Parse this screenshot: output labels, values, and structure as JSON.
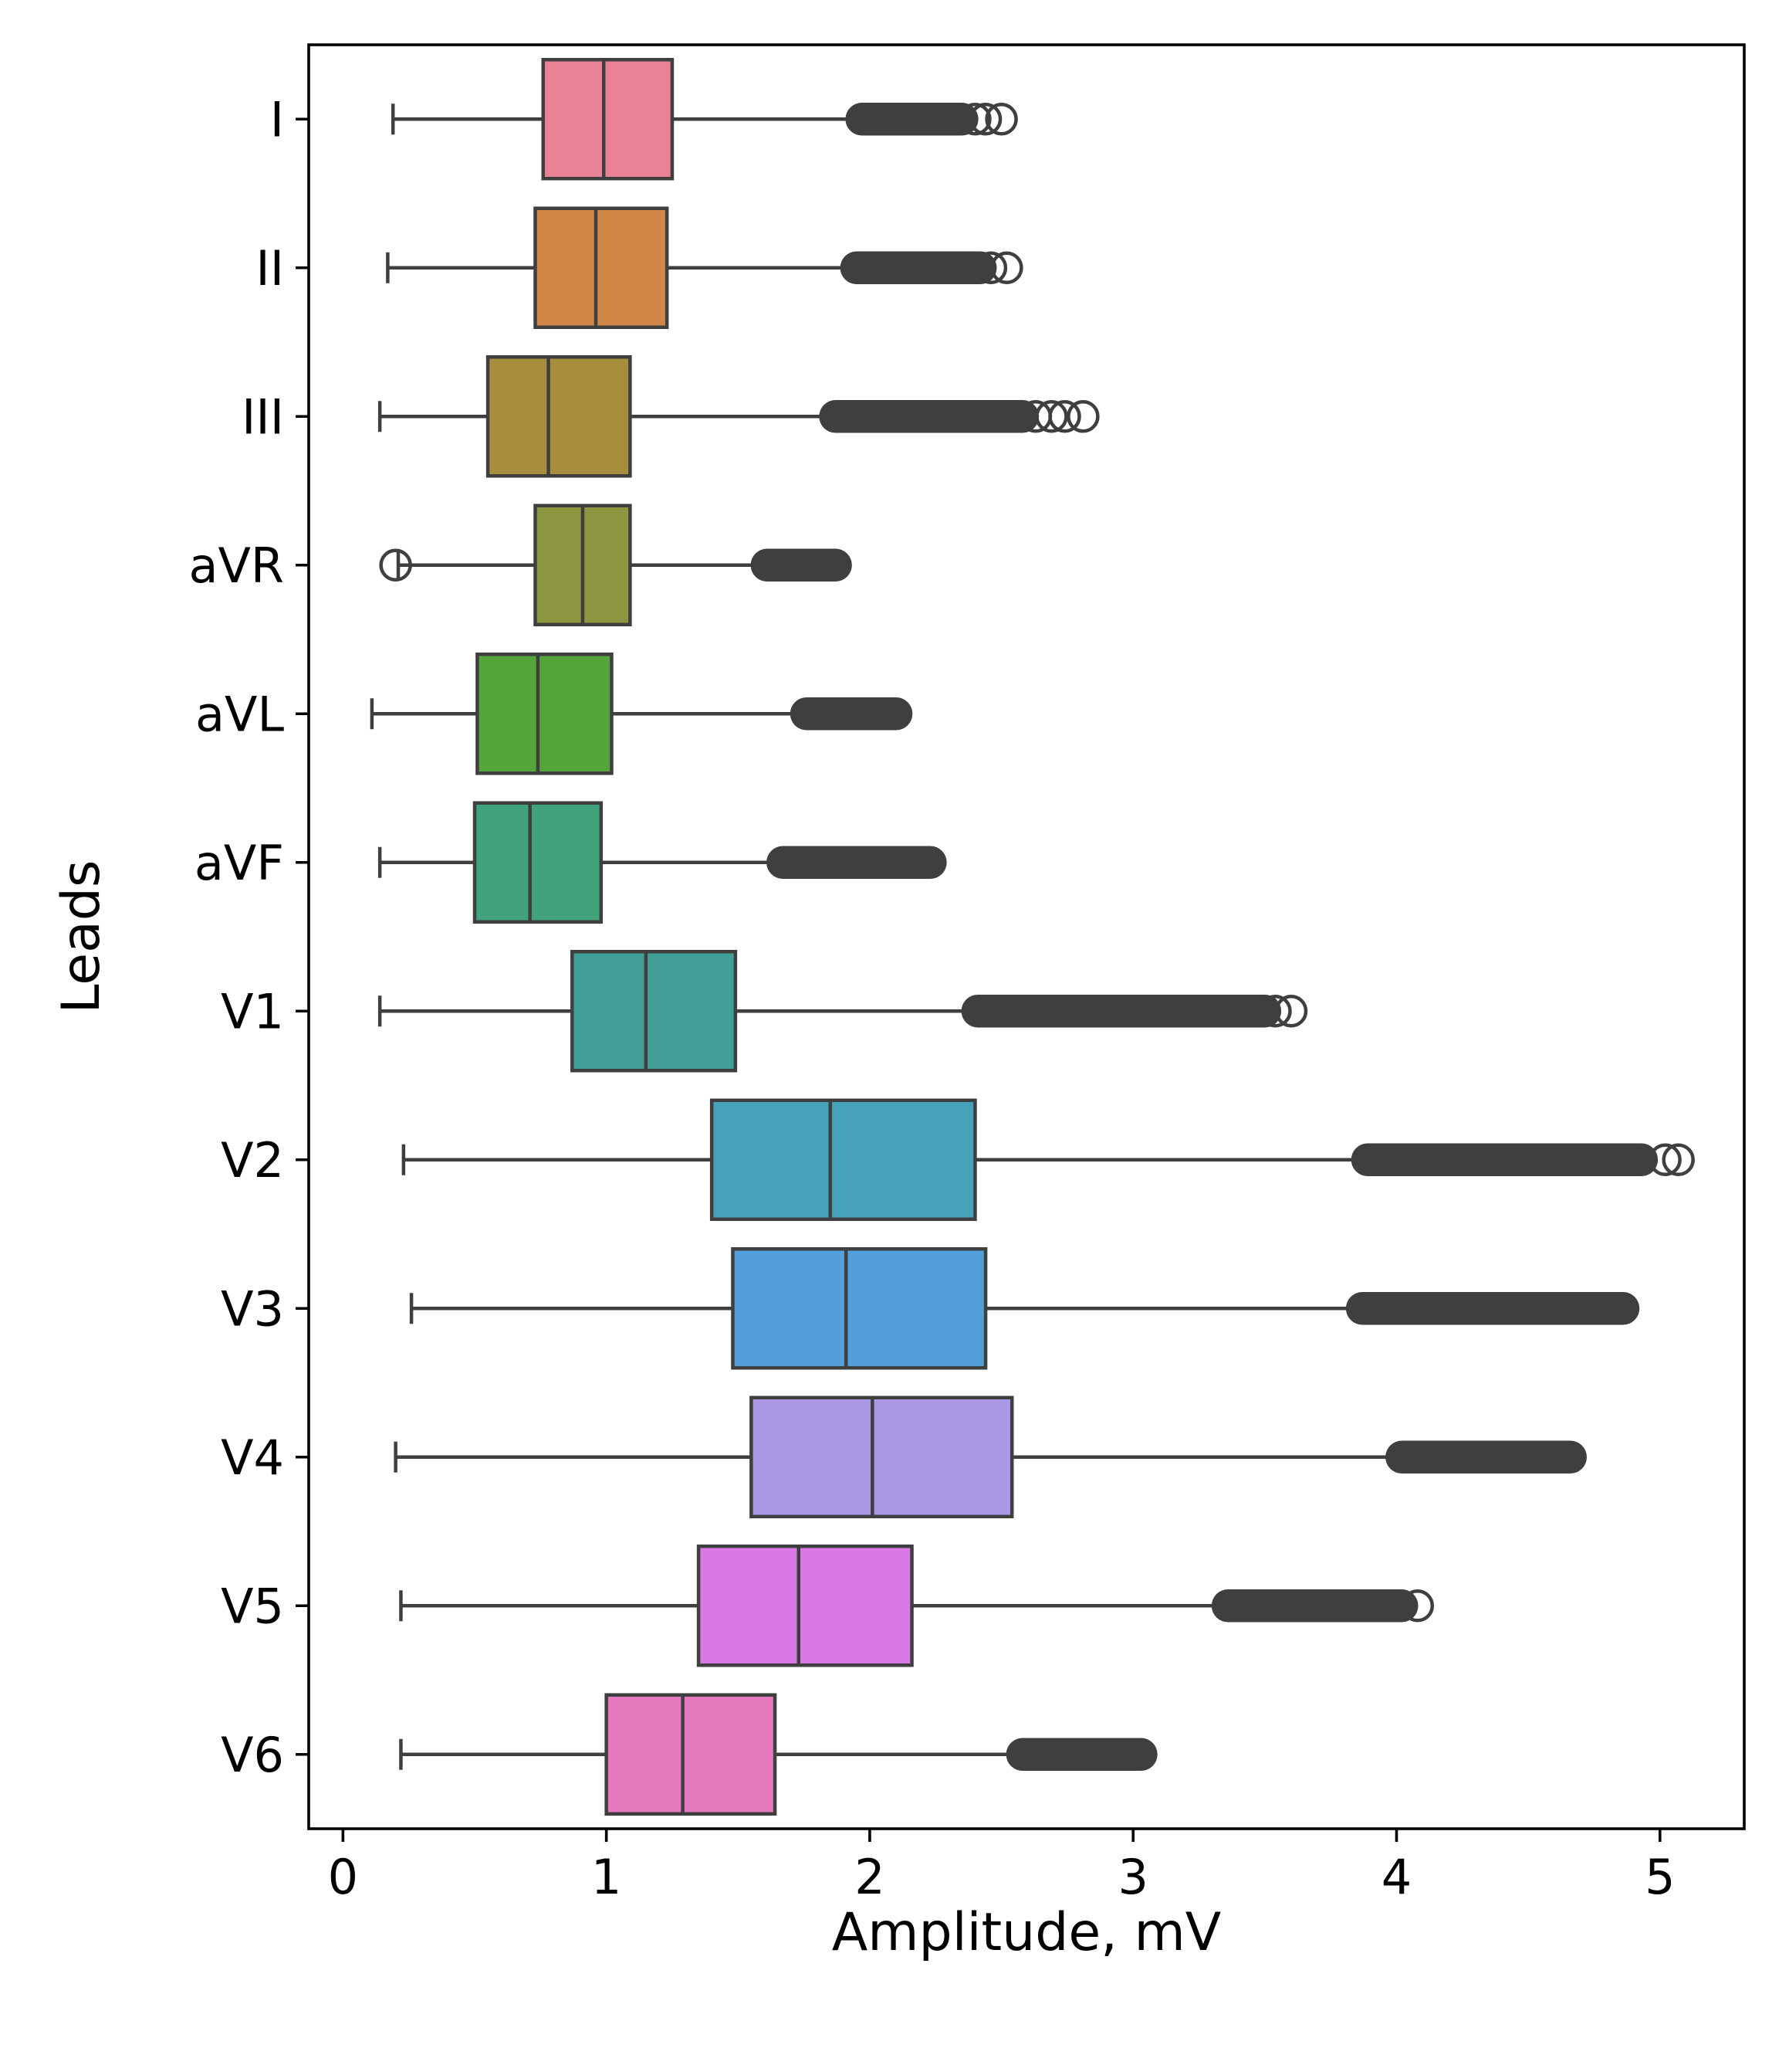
{
  "chart_data": {
    "type": "boxplot",
    "orientation": "horizontal",
    "xlabel": "Amplitude, mV",
    "ylabel": "Leads",
    "xlim": [
      -0.13,
      5.32
    ],
    "xticks": [
      0,
      1,
      2,
      3,
      4,
      5
    ],
    "grid": false,
    "legend": false,
    "series": [
      {
        "name": "I",
        "color": "#e88294",
        "whisker_low": 0.19,
        "q1": 0.76,
        "median": 0.99,
        "q3": 1.25,
        "whisker_high": 1.97,
        "outliers_dense": [
          1.97,
          2.35
        ],
        "outliers_sparse": [
          2.4,
          2.44,
          2.5
        ]
      },
      {
        "name": "II",
        "color": "#d18748",
        "whisker_low": 0.17,
        "q1": 0.73,
        "median": 0.96,
        "q3": 1.23,
        "whisker_high": 1.95,
        "outliers_dense": [
          1.95,
          2.42
        ],
        "outliers_sparse": [
          2.46,
          2.52
        ]
      },
      {
        "name": "III",
        "color": "#a78e3f",
        "whisker_low": 0.14,
        "q1": 0.55,
        "median": 0.78,
        "q3": 1.09,
        "whisker_high": 1.87,
        "outliers_dense": [
          1.87,
          2.58
        ],
        "outliers_sparse": [
          2.63,
          2.69,
          2.74,
          2.81
        ]
      },
      {
        "name": "aVR",
        "color": "#8d9741",
        "whisker_low": 0.21,
        "q1": 0.73,
        "median": 0.91,
        "q3": 1.09,
        "whisker_high": 1.61,
        "outliers_dense": [
          1.61,
          1.87
        ],
        "outliers_sparse": [
          0.2
        ]
      },
      {
        "name": "aVL",
        "color": "#55a63a",
        "whisker_low": 0.11,
        "q1": 0.51,
        "median": 0.74,
        "q3": 1.02,
        "whisker_high": 1.76,
        "outliers_dense": [
          1.76,
          2.1
        ],
        "outliers_sparse": []
      },
      {
        "name": "aVF",
        "color": "#40a37c",
        "whisker_low": 0.14,
        "q1": 0.5,
        "median": 0.71,
        "q3": 0.98,
        "whisker_high": 1.67,
        "outliers_dense": [
          1.67,
          2.23
        ],
        "outliers_sparse": []
      },
      {
        "name": "V1",
        "color": "#419f98",
        "whisker_low": 0.14,
        "q1": 0.87,
        "median": 1.15,
        "q3": 1.49,
        "whisker_high": 2.41,
        "outliers_dense": [
          2.41,
          3.5
        ],
        "outliers_sparse": [
          3.54,
          3.6
        ]
      },
      {
        "name": "V2",
        "color": "#45a2b8",
        "whisker_low": 0.23,
        "q1": 1.4,
        "median": 1.85,
        "q3": 2.4,
        "whisker_high": 3.89,
        "outliers_dense": [
          3.89,
          4.93
        ],
        "outliers_sparse": [
          5.02,
          5.07
        ]
      },
      {
        "name": "V3",
        "color": "#529fd9",
        "whisker_low": 0.26,
        "q1": 1.48,
        "median": 1.91,
        "q3": 2.44,
        "whisker_high": 3.87,
        "outliers_dense": [
          3.87,
          4.86
        ],
        "outliers_sparse": []
      },
      {
        "name": "V4",
        "color": "#aa98e7",
        "whisker_low": 0.2,
        "q1": 1.55,
        "median": 2.01,
        "q3": 2.54,
        "whisker_high": 4.02,
        "outliers_dense": [
          4.02,
          4.66
        ],
        "outliers_sparse": []
      },
      {
        "name": "V5",
        "color": "#da79e5",
        "whisker_low": 0.22,
        "q1": 1.35,
        "median": 1.73,
        "q3": 2.16,
        "whisker_high": 3.36,
        "outliers_dense": [
          3.36,
          4.02
        ],
        "outliers_sparse": [
          4.08
        ]
      },
      {
        "name": "V6",
        "color": "#e479bd",
        "whisker_low": 0.22,
        "q1": 1.0,
        "median": 1.29,
        "q3": 1.64,
        "whisker_high": 2.58,
        "outliers_dense": [
          2.58,
          3.03
        ],
        "outliers_sparse": []
      }
    ]
  }
}
